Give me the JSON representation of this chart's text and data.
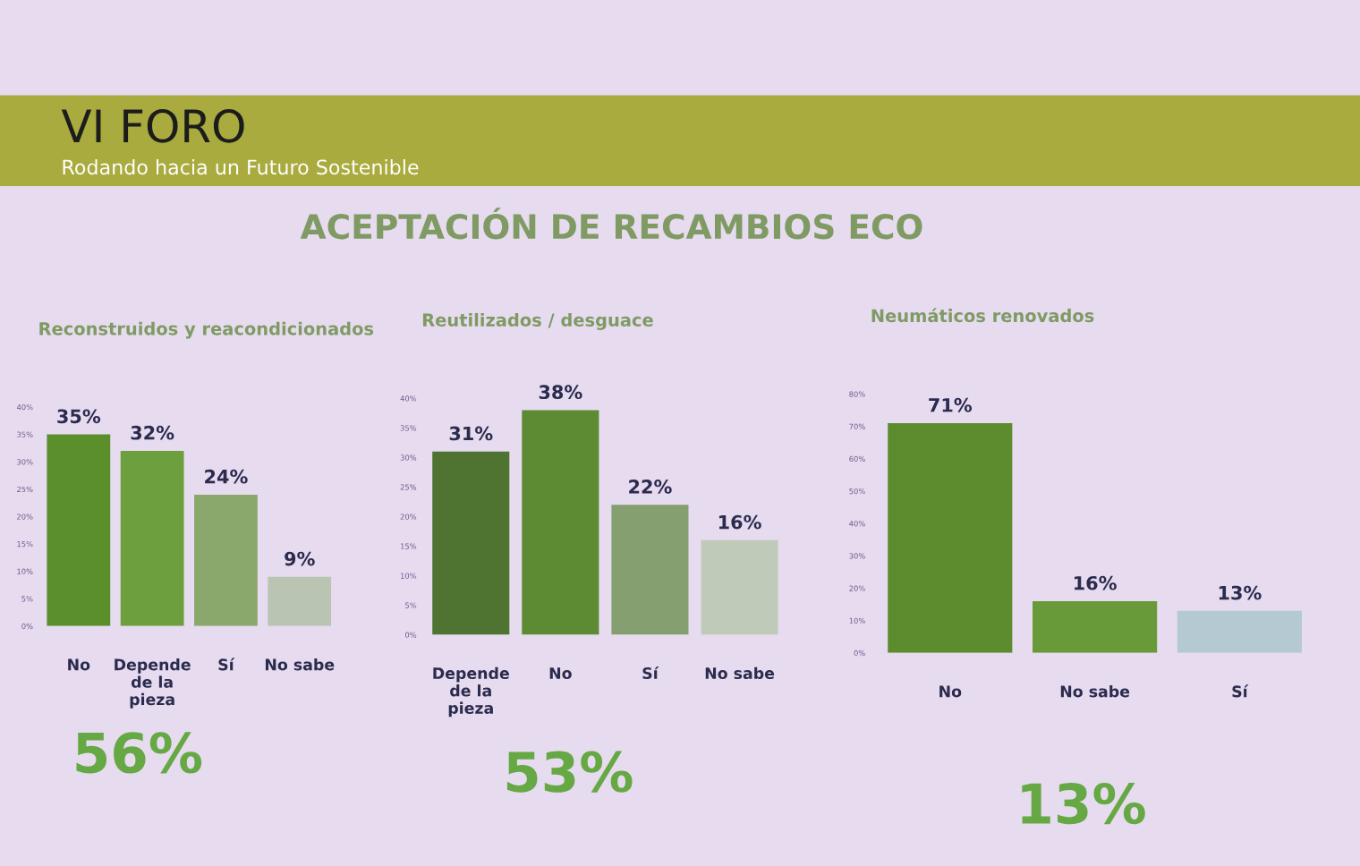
{
  "chart_data": [
    {
      "type": "other",
      "title": "ACEPTACIÓN DE RECAMBIOS ECO",
      "annotations": [
        "VI FORO",
        "Rodando hacia un Futuro Sostenible"
      ]
    },
    {
      "type": "bar",
      "title": "Reconstruidos y reacondicionados",
      "categories": [
        "No",
        "Depende de la pieza",
        "Sí",
        "No sabe"
      ],
      "values": [
        35,
        32,
        24,
        9
      ],
      "colors": [
        "#5b8f2c",
        "#6e9f3f",
        "#8aa76c",
        "#b9c5b2"
      ],
      "value_labels": [
        "35%",
        "32%",
        "24%",
        "9%"
      ],
      "ylim": [
        0,
        40
      ],
      "yticks": [
        {
          "value": 0,
          "label": "0%"
        },
        {
          "value": 5,
          "label": "5%"
        },
        {
          "value": 10,
          "label": "10%"
        },
        {
          "value": 15,
          "label": "15%"
        },
        {
          "value": 20,
          "label": "20%"
        },
        {
          "value": 25,
          "label": "25%"
        },
        {
          "value": 30,
          "label": "30%"
        },
        {
          "value": 35,
          "label": "35%"
        },
        {
          "value": 40,
          "label": "40%"
        }
      ],
      "annotations": [
        "56%"
      ]
    },
    {
      "type": "bar",
      "title": "Reutilizados / desguace",
      "categories": [
        "Depende de la pieza",
        "No",
        "Sí",
        "No sabe"
      ],
      "values": [
        31,
        38,
        22,
        16
      ],
      "colors": [
        "#4f7330",
        "#5d8b33",
        "#859f70",
        "#c0cab9"
      ],
      "value_labels": [
        "31%",
        "38%",
        "22%",
        "16%"
      ],
      "ylim": [
        0,
        40
      ],
      "yticks": [
        {
          "value": 0,
          "label": "0%"
        },
        {
          "value": 5,
          "label": "5%"
        },
        {
          "value": 10,
          "label": "10%"
        },
        {
          "value": 15,
          "label": "15%"
        },
        {
          "value": 20,
          "label": "20%"
        },
        {
          "value": 25,
          "label": "25%"
        },
        {
          "value": 30,
          "label": "30%"
        },
        {
          "value": 35,
          "label": "35%"
        },
        {
          "value": 40,
          "label": "40%"
        }
      ],
      "annotations": [
        "53%"
      ]
    },
    {
      "type": "bar",
      "title": "Neumáticos renovados",
      "categories": [
        "No",
        "No sabe",
        "Sí"
      ],
      "values": [
        71,
        16,
        13
      ],
      "colors": [
        "#5c8c2e",
        "#699a3a",
        "#b5c9d3"
      ],
      "value_labels": [
        "71%",
        "16%",
        "13%"
      ],
      "ylim": [
        0,
        80
      ],
      "yticks": [
        {
          "value": 0,
          "label": "0%"
        },
        {
          "value": 10,
          "label": "10%"
        },
        {
          "value": 20,
          "label": "20%"
        },
        {
          "value": 30,
          "label": "30%"
        },
        {
          "value": 40,
          "label": "40%"
        },
        {
          "value": 50,
          "label": "50%"
        },
        {
          "value": 60,
          "label": "60%"
        },
        {
          "value": 70,
          "label": "70%"
        },
        {
          "value": 80,
          "label": "80%"
        }
      ],
      "annotations": [
        "13%"
      ]
    }
  ]
}
